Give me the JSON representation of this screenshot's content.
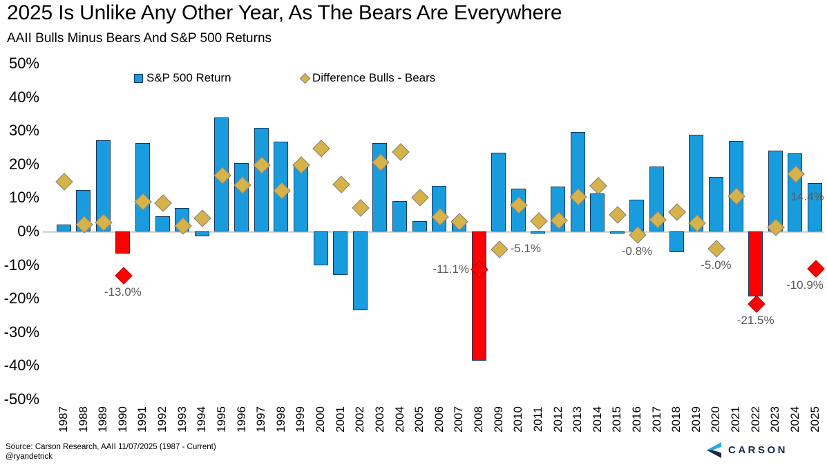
{
  "header": {
    "title": "2025 Is Unlike Any Other Year, As The Bears Are Everywhere",
    "subtitle": "AAII Bulls Minus Bears And S&P 500 Returns"
  },
  "legend": {
    "sp500_label": "S&P 500 Return",
    "diff_label": "Difference Bulls - Bears"
  },
  "colors": {
    "bar_positive": "#189CDE",
    "bar_border": "#17375E",
    "bar_highlight": "#FF0000",
    "diamond": "#D6B24A",
    "diamond_border": "#808080",
    "diamond_highlight": "#FF0000",
    "diamond_highlight_border": "#B00000",
    "zero_line": "#D9D9D9",
    "annotation_text": "#595959",
    "logo_navy": "#16294D",
    "logo_blue": "#2BA9E0"
  },
  "chart_data": {
    "type": "bar",
    "title": "2025 Is Unlike Any Other Year, As The Bears Are Everywhere",
    "subtitle": "AAII Bulls Minus Bears And S&P 500 Returns",
    "ylim": [
      -50,
      50
    ],
    "y_tick_labels": [
      "50%",
      "40%",
      "30%",
      "20%",
      "10%",
      "0%",
      "-10%",
      "-20%",
      "-30%",
      "-40%",
      "-50%"
    ],
    "y_tick_values": [
      50,
      40,
      30,
      20,
      10,
      0,
      -10,
      -20,
      -30,
      -40,
      -50
    ],
    "grid": "zero-line-only",
    "legend_position": "top",
    "categories": [
      1987,
      1988,
      1989,
      1990,
      1991,
      1992,
      1993,
      1994,
      1995,
      1996,
      1997,
      1998,
      1999,
      2000,
      2001,
      2002,
      2003,
      2004,
      2005,
      2006,
      2007,
      2008,
      2009,
      2010,
      2011,
      2012,
      2013,
      2014,
      2015,
      2016,
      2017,
      2018,
      2019,
      2020,
      2021,
      2022,
      2023,
      2024,
      2025
    ],
    "series": [
      {
        "name": "S&P 500 Return",
        "type": "bar",
        "values": [
          2.0,
          12.4,
          27.3,
          -6.6,
          26.3,
          4.5,
          7.1,
          -1.5,
          34.1,
          20.3,
          31.0,
          26.7,
          19.5,
          -10.1,
          -13.0,
          -23.4,
          26.4,
          9.0,
          3.0,
          13.6,
          3.5,
          -38.5,
          23.5,
          12.8,
          0.0,
          13.4,
          29.6,
          11.4,
          -0.7,
          9.5,
          19.4,
          -6.2,
          28.9,
          16.3,
          26.9,
          -19.4,
          24.2,
          23.3,
          14.4
        ],
        "highlight_years": [
          1990,
          2008,
          2022
        ]
      },
      {
        "name": "Difference Bulls - Bears",
        "type": "scatter-diamond",
        "values": [
          15.0,
          2.3,
          2.9,
          -13.0,
          9.0,
          8.7,
          1.8,
          4.1,
          16.8,
          14.0,
          20.0,
          12.4,
          20.0,
          25.0,
          14.3,
          7.2,
          20.8,
          24.0,
          10.3,
          4.6,
          3.0,
          -11.1,
          -5.1,
          8.0,
          3.3,
          3.4,
          10.5,
          13.8,
          5.2,
          -0.8,
          3.7,
          6.0,
          2.7,
          -5.0,
          10.8,
          -21.5,
          1.4,
          17.4,
          -10.9
        ],
        "highlight_years": [
          1990,
          2008,
          2022,
          2025
        ]
      }
    ],
    "annotations": [
      {
        "year": 1990,
        "text": "-13.0%",
        "anchor": "diff",
        "placement": "below"
      },
      {
        "year": 2008,
        "text": "-11.1%",
        "anchor": "diff",
        "placement": "left"
      },
      {
        "year": 2009,
        "text": "-5.1%",
        "anchor": "diff",
        "placement": "right"
      },
      {
        "year": 2016,
        "text": "-0.8%",
        "anchor": "diff",
        "placement": "below"
      },
      {
        "year": 2020,
        "text": "-5.0%",
        "anchor": "diff",
        "placement": "below"
      },
      {
        "year": 2022,
        "text": "-21.5%",
        "anchor": "diff",
        "placement": "below"
      },
      {
        "year": 2025,
        "text": "-10.9%",
        "anchor": "diff",
        "placement": "below"
      },
      {
        "year": 2025,
        "text": "14.4%",
        "anchor": "bar",
        "placement": "above-bar"
      }
    ]
  },
  "footer": {
    "source": "Source: Carson Research, AAII 11/07/2025 (1987 - Current)",
    "handle": "@ryandetrick",
    "logo_text": "CARSON"
  }
}
